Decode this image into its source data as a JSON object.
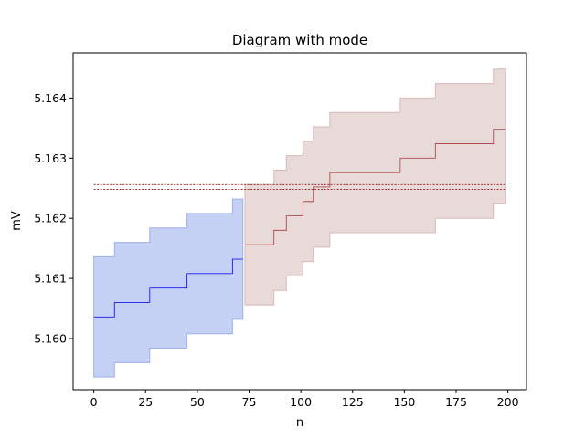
{
  "chart_data": {
    "type": "line",
    "title": "Diagram with mode",
    "xlabel": "n",
    "ylabel": "mV",
    "xlim": [
      -10,
      209
    ],
    "ylim": [
      5.15915,
      5.16475
    ],
    "xticks": [
      0,
      25,
      50,
      75,
      100,
      125,
      150,
      175,
      200
    ],
    "yticks": [
      5.16,
      5.161,
      5.162,
      5.163,
      5.164
    ],
    "ytick_labels": [
      "5.160",
      "5.161",
      "5.162",
      "5.163",
      "5.164"
    ],
    "grid": false,
    "colors": {
      "blue_line": "#1a1aee",
      "blue_band": "#c5d0f5",
      "blue_band_edge": "#9fb0ec",
      "red_line": "#b04848",
      "red_band": "#e9dada",
      "red_band_edge": "#d8b8b8",
      "mode_line": "#8b1a1a"
    },
    "series": [
      {
        "x": [
          0,
          10,
          27,
          45,
          67,
          72
        ],
        "y": [
          5.16036,
          5.1606,
          5.16084,
          5.16108,
          5.16132,
          5.16132
        ],
        "lower": [
          5.15936,
          5.1596,
          5.15984,
          5.16008,
          5.16032,
          5.16032
        ],
        "upper": [
          5.16136,
          5.1616,
          5.16184,
          5.16208,
          5.16232,
          5.16232
        ],
        "style": "step"
      },
      {
        "x": [
          73,
          87,
          93,
          101,
          106,
          108,
          114,
          148,
          165,
          193,
          199
        ],
        "y": [
          5.16156,
          5.1618,
          5.16204,
          5.16228,
          5.16252,
          5.16252,
          5.16276,
          5.163,
          5.16324,
          5.16348,
          5.16348
        ],
        "lower": [
          5.16056,
          5.1608,
          5.16104,
          5.16128,
          5.16152,
          5.16152,
          5.16176,
          5.16176,
          5.162,
          5.16224,
          5.16224
        ],
        "upper": [
          5.16256,
          5.1628,
          5.16304,
          5.16328,
          5.16352,
          5.16352,
          5.16376,
          5.164,
          5.16424,
          5.16448,
          5.16448
        ],
        "style": "step"
      }
    ],
    "mode_lines": [
      {
        "y": 5.16256,
        "x": [
          0,
          199
        ]
      },
      {
        "y": 5.16248,
        "x": [
          0,
          199
        ]
      }
    ]
  }
}
